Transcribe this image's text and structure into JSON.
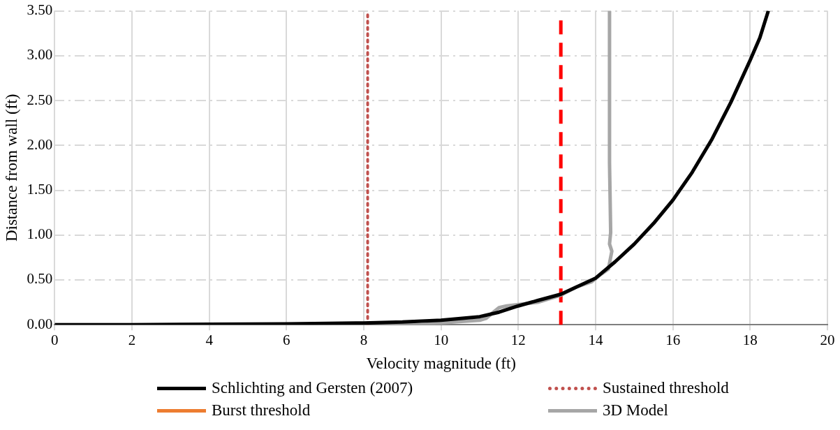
{
  "chart_data": {
    "type": "line",
    "xlabel": "Velocity magnitude (ft)",
    "ylabel": "Distance from wall (ft)",
    "xlim": [
      0,
      20
    ],
    "xticks": [
      0,
      2,
      4,
      6,
      8,
      10,
      12,
      14,
      16,
      18,
      20
    ],
    "ylim": [
      0,
      3.5
    ],
    "yticks": [
      {
        "value": 0,
        "label": "0.00"
      },
      {
        "value": 0.5,
        "label": "0.50"
      },
      {
        "value": 1,
        "label": "1.00"
      },
      {
        "value": 1.5,
        "label": "1.50"
      },
      {
        "value": 2,
        "label": "2.00"
      },
      {
        "value": 2.5,
        "label": "2.50"
      },
      {
        "value": 3,
        "label": "3.00"
      },
      {
        "value": 3.5,
        "label": "3.50"
      }
    ],
    "grid": true,
    "legend": "bottom",
    "marker": "none",
    "ref_lines": [
      {
        "axis": "x",
        "value": 13.1,
        "color": "#ff0000",
        "line_style": "dashed"
      }
    ],
    "series": [
      {
        "name": "Schlichting and Gersten (2007)",
        "color": "#000000",
        "line_style": "solid",
        "x": [
          0,
          2,
          4,
          6,
          8,
          9,
          10,
          11,
          11.5,
          12,
          12.5,
          13.1,
          13.5,
          14,
          14.5,
          15,
          15.5,
          16,
          16.5,
          17,
          17.5,
          18,
          18.25,
          18.47
        ],
        "values": [
          0,
          0,
          0.005,
          0.01,
          0.02,
          0.03,
          0.05,
          0.09,
          0.14,
          0.21,
          0.27,
          0.34,
          0.42,
          0.52,
          0.7,
          0.9,
          1.13,
          1.39,
          1.7,
          2.06,
          2.48,
          2.95,
          3.2,
          3.5
        ]
      },
      {
        "name": "Sustained threshold",
        "color": "#c0504d",
        "line_style": "dotted",
        "x": [
          8.1,
          8.1
        ],
        "values": [
          0,
          3.5
        ]
      },
      {
        "name": "Burst threshold",
        "color": "#ed7d31",
        "line_style": "solid"
      },
      {
        "name": "3D Model",
        "color": "#a6a6a6",
        "line_style": "solid",
        "x": [
          0,
          4,
          8,
          9.5,
          10,
          11,
          11.16,
          11.3,
          11.5,
          11.7,
          12.5,
          13.1,
          13.5,
          13.9,
          14.1,
          14.33,
          14.42,
          14.36,
          14.39,
          14.36,
          14.36
        ],
        "values": [
          0,
          0,
          0,
          0,
          0.02,
          0.05,
          0.07,
          0.12,
          0.19,
          0.21,
          0.25,
          0.33,
          0.42,
          0.48,
          0.55,
          0.62,
          0.82,
          0.9,
          1.03,
          1.8,
          3.5
        ]
      }
    ]
  }
}
